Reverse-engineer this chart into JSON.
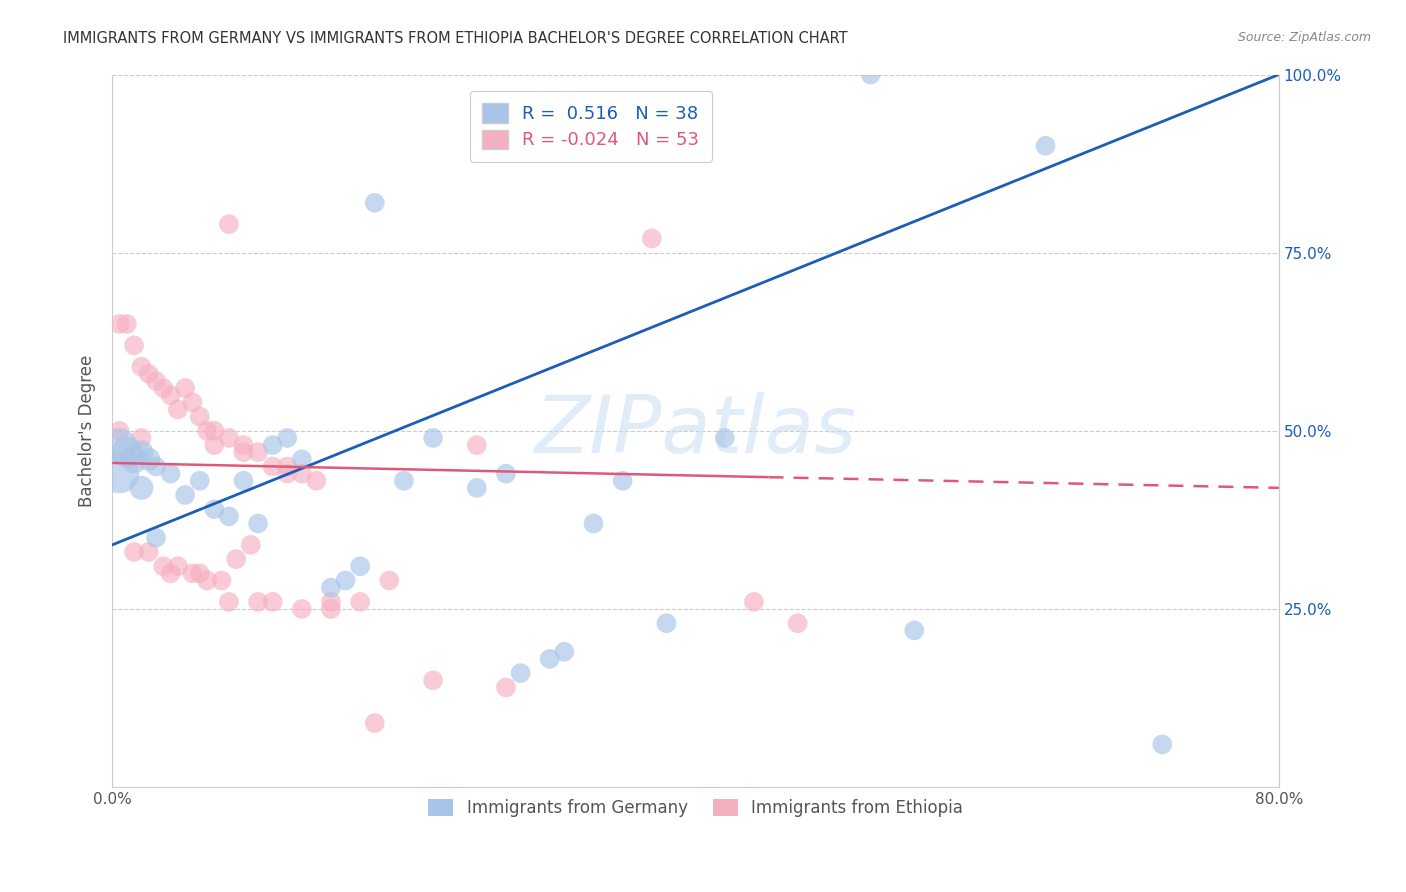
{
  "title": "IMMIGRANTS FROM GERMANY VS IMMIGRANTS FROM ETHIOPIA BACHELOR'S DEGREE CORRELATION CHART",
  "source": "Source: ZipAtlas.com",
  "ylabel": "Bachelor's Degree",
  "watermark": "ZIPatlas",
  "legend_germany": "Immigrants from Germany",
  "legend_ethiopia": "Immigrants from Ethiopia",
  "R_germany": "0.516",
  "N_germany": "38",
  "R_ethiopia": "-0.024",
  "N_ethiopia": "53",
  "color_germany": "#a8c4e8",
  "color_ethiopia": "#f5b0c0",
  "color_line_germany": "#1a5eb8",
  "color_line_ethiopia": "#e05878",
  "background_color": "#ffffff",
  "xlim": [
    0.0,
    0.8
  ],
  "ylim": [
    0.0,
    1.0
  ],
  "germany_x": [
    0.52,
    0.64,
    0.18,
    0.005,
    0.01,
    0.015,
    0.02,
    0.025,
    0.03,
    0.04,
    0.05,
    0.06,
    0.07,
    0.08,
    0.09,
    0.1,
    0.11,
    0.12,
    0.13,
    0.15,
    0.16,
    0.17,
    0.2,
    0.22,
    0.25,
    0.27,
    0.28,
    0.3,
    0.31,
    0.33,
    0.35,
    0.38,
    0.42,
    0.55,
    0.72,
    0.005,
    0.02,
    0.03
  ],
  "germany_y": [
    1.0,
    0.9,
    0.82,
    0.48,
    0.47,
    0.46,
    0.47,
    0.46,
    0.45,
    0.44,
    0.41,
    0.43,
    0.39,
    0.38,
    0.43,
    0.37,
    0.48,
    0.49,
    0.46,
    0.28,
    0.29,
    0.31,
    0.43,
    0.49,
    0.42,
    0.44,
    0.16,
    0.18,
    0.19,
    0.37,
    0.43,
    0.23,
    0.49,
    0.22,
    0.06,
    0.44,
    0.42,
    0.35
  ],
  "germany_sizes": [
    200,
    200,
    200,
    600,
    500,
    400,
    300,
    280,
    200,
    200,
    200,
    200,
    200,
    200,
    200,
    200,
    200,
    200,
    200,
    200,
    200,
    200,
    200,
    200,
    200,
    200,
    200,
    200,
    200,
    200,
    200,
    200,
    200,
    200,
    200,
    800,
    300,
    200
  ],
  "ethiopia_x": [
    0.37,
    0.08,
    0.005,
    0.01,
    0.015,
    0.02,
    0.025,
    0.03,
    0.035,
    0.04,
    0.045,
    0.05,
    0.055,
    0.06,
    0.065,
    0.07,
    0.08,
    0.09,
    0.1,
    0.11,
    0.12,
    0.13,
    0.14,
    0.015,
    0.025,
    0.035,
    0.045,
    0.055,
    0.065,
    0.075,
    0.085,
    0.095,
    0.11,
    0.13,
    0.15,
    0.17,
    0.19,
    0.22,
    0.27,
    0.44,
    0.47,
    0.005,
    0.02,
    0.04,
    0.06,
    0.08,
    0.1,
    0.12,
    0.25,
    0.15,
    0.18,
    0.07,
    0.09
  ],
  "ethiopia_y": [
    0.77,
    0.79,
    0.65,
    0.65,
    0.62,
    0.59,
    0.58,
    0.57,
    0.56,
    0.55,
    0.53,
    0.56,
    0.54,
    0.52,
    0.5,
    0.5,
    0.49,
    0.47,
    0.47,
    0.45,
    0.45,
    0.44,
    0.43,
    0.33,
    0.33,
    0.31,
    0.31,
    0.3,
    0.29,
    0.29,
    0.32,
    0.34,
    0.26,
    0.25,
    0.25,
    0.26,
    0.29,
    0.15,
    0.14,
    0.26,
    0.23,
    0.5,
    0.49,
    0.3,
    0.3,
    0.26,
    0.26,
    0.44,
    0.48,
    0.26,
    0.09,
    0.48,
    0.48
  ],
  "ethiopia_sizes": [
    200,
    200,
    200,
    200,
    200,
    200,
    200,
    200,
    200,
    200,
    200,
    200,
    200,
    200,
    200,
    200,
    200,
    200,
    200,
    200,
    200,
    200,
    200,
    200,
    200,
    200,
    200,
    200,
    200,
    200,
    200,
    200,
    200,
    200,
    200,
    200,
    200,
    200,
    200,
    200,
    200,
    200,
    200,
    200,
    200,
    200,
    200,
    200,
    200,
    200,
    200,
    200,
    200
  ],
  "line_germany_x0": 0.0,
  "line_germany_y0": 0.34,
  "line_germany_x1": 0.8,
  "line_germany_y1": 1.0,
  "line_ethiopia_solid_x0": 0.0,
  "line_ethiopia_solid_y0": 0.455,
  "line_ethiopia_solid_x1": 0.45,
  "line_ethiopia_solid_y1": 0.435,
  "line_ethiopia_dash_x0": 0.45,
  "line_ethiopia_dash_y0": 0.435,
  "line_ethiopia_dash_x1": 0.8,
  "line_ethiopia_dash_y1": 0.42
}
